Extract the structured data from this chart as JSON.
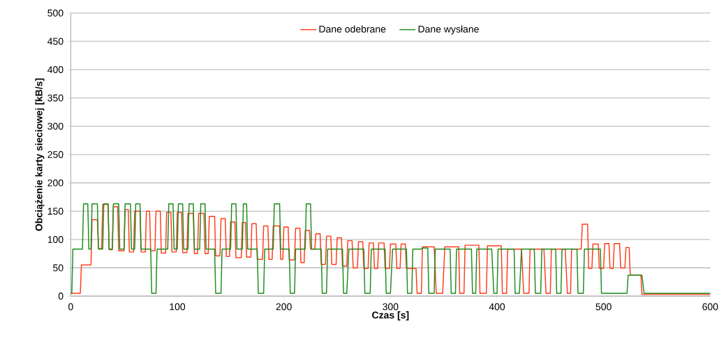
{
  "chart_data": {
    "type": "line",
    "xlabel": "Czas [s]",
    "ylabel": "Obciążenie karty sieciowej [kB/s]",
    "xlim": [
      0,
      600
    ],
    "xticks": [
      0,
      100,
      200,
      300,
      400,
      500,
      600
    ],
    "ylim": [
      0,
      500
    ],
    "yticks": [
      0,
      50,
      100,
      150,
      200,
      250,
      300,
      350,
      400,
      450,
      500
    ],
    "grid": "y",
    "legend": "top",
    "marker": "none",
    "line_style": "solid",
    "series": [
      {
        "name": "Dane odebrane",
        "color": "#ff3c1a",
        "x": [
          0,
          9,
          10,
          19,
          20,
          25,
          26,
          29,
          30,
          35,
          36,
          39,
          40,
          44,
          45,
          50,
          51,
          54,
          55,
          59,
          60,
          65,
          66,
          70,
          71,
          74,
          75,
          79,
          80,
          84,
          85,
          89,
          90,
          94,
          95,
          99,
          100,
          104,
          105,
          109,
          110,
          115,
          116,
          119,
          120,
          125,
          126,
          129,
          130,
          135,
          136,
          140,
          141,
          145,
          146,
          149,
          150,
          154,
          155,
          160,
          161,
          164,
          165,
          169,
          170,
          174,
          175,
          180,
          181,
          185,
          186,
          189,
          190,
          196,
          197,
          199,
          200,
          204,
          205,
          210,
          211,
          215,
          216,
          219,
          220,
          224,
          225,
          229,
          230,
          234,
          235,
          239,
          240,
          244,
          245,
          249,
          250,
          254,
          255,
          259,
          260,
          264,
          265,
          269,
          270,
          274,
          275,
          279,
          280,
          284,
          285,
          288,
          289,
          294,
          295,
          299,
          300,
          305,
          306,
          309,
          310,
          314,
          315,
          324,
          325,
          329,
          330,
          341,
          343,
          349,
          351,
          364,
          365,
          369,
          370,
          383,
          384,
          390,
          391,
          404,
          405,
          409,
          410,
          423,
          425,
          430,
          431,
          444,
          446,
          450,
          451,
          464,
          466,
          469,
          470,
          479,
          480,
          485,
          486,
          489,
          490,
          495,
          496,
          500,
          501,
          505,
          506,
          509,
          510,
          515,
          516,
          520,
          521,
          524,
          525,
          535,
          536,
          600
        ],
        "values": [
          5,
          5,
          55,
          55,
          135,
          135,
          84,
          84,
          162,
          162,
          82,
          82,
          158,
          158,
          80,
          80,
          153,
          153,
          78,
          78,
          150,
          150,
          78,
          78,
          150,
          150,
          80,
          80,
          150,
          150,
          76,
          76,
          148,
          148,
          78,
          78,
          148,
          148,
          77,
          77,
          146,
          146,
          75,
          75,
          146,
          146,
          75,
          75,
          141,
          141,
          71,
          71,
          137,
          137,
          70,
          70,
          131,
          131,
          68,
          68,
          130,
          130,
          69,
          69,
          128,
          128,
          65,
          65,
          124,
          124,
          65,
          65,
          124,
          124,
          65,
          65,
          122,
          122,
          64,
          64,
          120,
          120,
          59,
          59,
          116,
          116,
          83,
          83,
          110,
          110,
          56,
          56,
          106,
          106,
          56,
          56,
          103,
          103,
          53,
          53,
          98,
          98,
          50,
          50,
          96,
          96,
          49,
          49,
          94,
          94,
          49,
          49,
          94,
          94,
          49,
          49,
          92,
          92,
          49,
          49,
          92,
          92,
          49,
          49,
          5,
          5,
          87,
          87,
          5,
          5,
          87,
          87,
          5,
          5,
          90,
          90,
          5,
          5,
          89,
          89,
          5,
          5,
          83,
          83,
          5,
          5,
          83,
          83,
          5,
          5,
          83,
          83,
          5,
          5,
          83,
          83,
          127,
          127,
          49,
          49,
          92,
          92,
          49,
          49,
          93,
          93,
          49,
          49,
          93,
          93,
          50,
          50,
          86,
          86,
          37,
          37,
          3,
          3
        ]
      },
      {
        "name": "Dane wysłane",
        "color": "#1e8c1e",
        "x": [
          0,
          1,
          2,
          11,
          12,
          16,
          17,
          19,
          20,
          25,
          26,
          30,
          31,
          35,
          36,
          39,
          40,
          45,
          46,
          50,
          51,
          56,
          57,
          60,
          61,
          65,
          66,
          75,
          76,
          80,
          81,
          91,
          92,
          96,
          97,
          100,
          101,
          105,
          106,
          110,
          111,
          115,
          116,
          121,
          122,
          126,
          127,
          135,
          136,
          141,
          142,
          150,
          151,
          155,
          156,
          161,
          162,
          165,
          166,
          175,
          176,
          181,
          182,
          190,
          191,
          196,
          197,
          205,
          206,
          210,
          211,
          220,
          221,
          225,
          226,
          235,
          236,
          240,
          241,
          255,
          256,
          259,
          261,
          275,
          276,
          281,
          282,
          295,
          296,
          300,
          302,
          315,
          316,
          320,
          321,
          329,
          330,
          335,
          336,
          341,
          342,
          356,
          357,
          361,
          362,
          376,
          377,
          380,
          381,
          395,
          397,
          400,
          401,
          416,
          417,
          421,
          423,
          435,
          436,
          441,
          442,
          455,
          456,
          460,
          461,
          475,
          476,
          481,
          482,
          497,
          498,
          522,
          523,
          536,
          538,
          600
        ],
        "values": [
          5,
          5,
          83,
          83,
          163,
          163,
          83,
          83,
          163,
          163,
          83,
          83,
          163,
          163,
          83,
          83,
          163,
          163,
          83,
          83,
          163,
          163,
          83,
          83,
          163,
          163,
          83,
          83,
          5,
          5,
          83,
          83,
          163,
          163,
          83,
          83,
          163,
          163,
          83,
          83,
          163,
          163,
          83,
          83,
          163,
          163,
          83,
          83,
          5,
          5,
          83,
          83,
          163,
          163,
          83,
          83,
          163,
          163,
          83,
          83,
          5,
          5,
          83,
          83,
          163,
          163,
          83,
          83,
          5,
          5,
          83,
          83,
          163,
          163,
          83,
          83,
          5,
          5,
          83,
          83,
          5,
          5,
          83,
          83,
          5,
          5,
          83,
          83,
          5,
          5,
          83,
          83,
          5,
          5,
          83,
          83,
          85,
          85,
          5,
          5,
          83,
          83,
          5,
          5,
          83,
          83,
          5,
          5,
          83,
          83,
          5,
          5,
          83,
          83,
          5,
          5,
          83,
          83,
          5,
          5,
          83,
          83,
          5,
          5,
          83,
          83,
          5,
          5,
          83,
          83,
          5,
          5,
          37,
          37,
          5,
          5
        ]
      }
    ]
  }
}
